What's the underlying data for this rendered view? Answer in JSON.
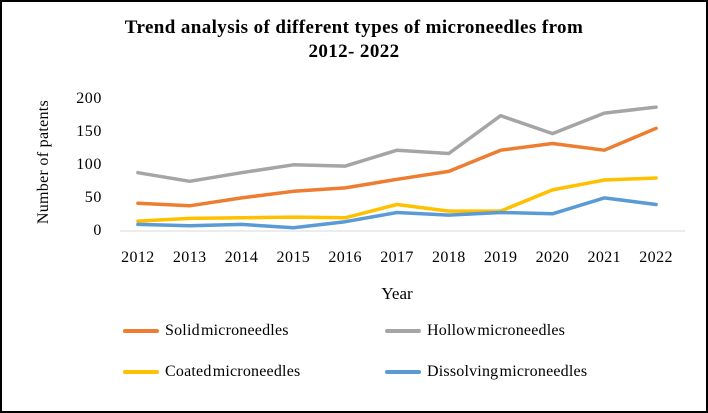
{
  "frame": {
    "background_color": "#ffffff",
    "border_color": "#000000"
  },
  "chart_data": {
    "type": "line",
    "title_line1": "Trend analysis of different types of microneedles from",
    "title_line2": "2012- 2022",
    "xlabel": "Year",
    "ylabel": "Number of patents",
    "categories": [
      "2012",
      "2013",
      "2014",
      "2015",
      "2016",
      "2017",
      "2018",
      "2019",
      "2020",
      "2021",
      "2022"
    ],
    "y_ticks": [
      200,
      150,
      100,
      50,
      0
    ],
    "ylim": [
      0,
      200
    ],
    "grid": false,
    "axis_line_color": "#D9D9D9",
    "legend_position": "bottom",
    "series": [
      {
        "name": "Solid microneedles",
        "color": "#ED7D31",
        "values": [
          42,
          38,
          50,
          60,
          65,
          78,
          90,
          122,
          132,
          122,
          155
        ]
      },
      {
        "name": "Hollow microneedles",
        "color": "#A5A5A5",
        "values": [
          88,
          75,
          88,
          100,
          98,
          122,
          117,
          174,
          147,
          178,
          187
        ]
      },
      {
        "name": "Coated microneedles",
        "color": "#FFC000",
        "values": [
          15,
          19,
          20,
          21,
          20,
          40,
          30,
          30,
          62,
          77,
          80
        ]
      },
      {
        "name": "Dissolving microneedles",
        "color": "#5B9BD5",
        "values": [
          10,
          8,
          10,
          5,
          14,
          28,
          24,
          28,
          26,
          50,
          40
        ]
      }
    ]
  }
}
